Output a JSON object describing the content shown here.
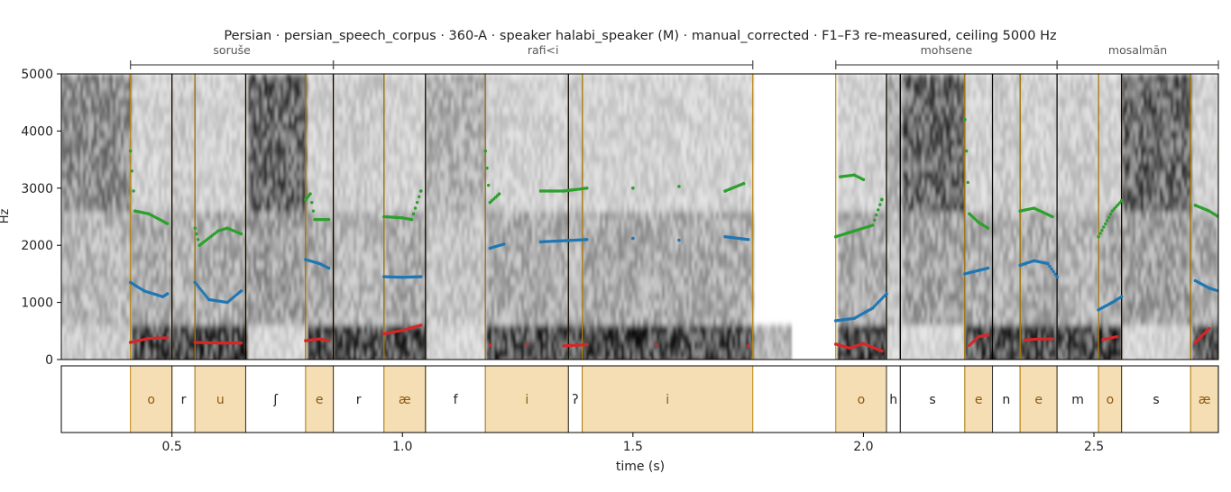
{
  "chart_data": {
    "type": "spectrogram",
    "title": "Persian · persian_speech_corpus · 360-A · speaker halabi_speaker (M) · manual_corrected · F1–F3 re-measured, ceiling 5000 Hz",
    "xlabel": "time (s)",
    "ylabel": "Hz",
    "xlim": [
      0.26,
      2.77
    ],
    "ylim": [
      0,
      5000
    ],
    "x_ticks": [
      0.5,
      1.0,
      1.5,
      2.0,
      2.5
    ],
    "x_tick_labels": [
      "0.5",
      "1.0",
      "1.5",
      "2.0",
      "2.5"
    ],
    "y_ticks": [
      0,
      1000,
      2000,
      3000,
      4000,
      5000
    ],
    "y_tick_labels": [
      "0",
      "1000",
      "2000",
      "3000",
      "4000",
      "5000"
    ],
    "words": [
      {
        "label": "soruše",
        "start": 0.41,
        "end": 0.85
      },
      {
        "label": "rafi<i",
        "start": 0.85,
        "end": 1.76
      },
      {
        "label": "mohsene",
        "start": 1.94,
        "end": 2.42
      },
      {
        "label": "mosalmān",
        "start": 2.42,
        "end": 2.77
      }
    ],
    "segments": [
      {
        "label": "o",
        "start": 0.41,
        "end": 0.5,
        "vowel": true
      },
      {
        "label": "r",
        "start": 0.5,
        "end": 0.55,
        "vowel": false
      },
      {
        "label": "u",
        "start": 0.55,
        "end": 0.66,
        "vowel": true
      },
      {
        "label": "ʃ",
        "start": 0.66,
        "end": 0.79,
        "vowel": false
      },
      {
        "label": "e",
        "start": 0.79,
        "end": 0.85,
        "vowel": true
      },
      {
        "label": "r",
        "start": 0.85,
        "end": 0.96,
        "vowel": false
      },
      {
        "label": "æ",
        "start": 0.96,
        "end": 1.05,
        "vowel": true
      },
      {
        "label": "f",
        "start": 1.05,
        "end": 1.18,
        "vowel": false
      },
      {
        "label": "i",
        "start": 1.18,
        "end": 1.36,
        "vowel": true
      },
      {
        "label": "ʔ",
        "start": 1.36,
        "end": 1.39,
        "vowel": false
      },
      {
        "label": "i",
        "start": 1.39,
        "end": 1.76,
        "vowel": true
      },
      {
        "label": "o",
        "start": 1.94,
        "end": 2.05,
        "vowel": true
      },
      {
        "label": "h",
        "start": 2.05,
        "end": 2.08,
        "vowel": false
      },
      {
        "label": "s",
        "start": 2.08,
        "end": 2.22,
        "vowel": false
      },
      {
        "label": "e",
        "start": 2.22,
        "end": 2.28,
        "vowel": true
      },
      {
        "label": "n",
        "start": 2.28,
        "end": 2.34,
        "vowel": false
      },
      {
        "label": "e",
        "start": 2.34,
        "end": 2.42,
        "vowel": true
      },
      {
        "label": "m",
        "start": 2.42,
        "end": 2.51,
        "vowel": false
      },
      {
        "label": "o",
        "start": 2.51,
        "end": 2.56,
        "vowel": true
      },
      {
        "label": "s",
        "start": 2.56,
        "end": 2.71,
        "vowel": false
      },
      {
        "label": "æ",
        "start": 2.71,
        "end": 2.77,
        "vowel": true
      }
    ],
    "formant_tracks": [
      {
        "name": "F1",
        "color": "#d62728",
        "points": [
          [
            0.41,
            300
          ],
          [
            0.45,
            370
          ],
          [
            0.49,
            380
          ],
          [
            0.55,
            300
          ],
          [
            0.6,
            290
          ],
          [
            0.65,
            290
          ],
          [
            0.79,
            330
          ],
          [
            0.82,
            360
          ],
          [
            0.84,
            330
          ],
          [
            0.96,
            450
          ],
          [
            1.0,
            510
          ],
          [
            1.04,
            600
          ],
          [
            1.19,
            250
          ],
          [
            1.27,
            260
          ],
          [
            1.35,
            240
          ],
          [
            1.4,
            260
          ],
          [
            1.55,
            260
          ],
          [
            1.75,
            240
          ],
          [
            1.94,
            270
          ],
          [
            1.97,
            200
          ],
          [
            2.0,
            280
          ],
          [
            2.04,
            150
          ],
          [
            2.23,
            250
          ],
          [
            2.25,
            400
          ],
          [
            2.27,
            430
          ],
          [
            2.35,
            340
          ],
          [
            2.38,
            360
          ],
          [
            2.41,
            360
          ],
          [
            2.52,
            350
          ],
          [
            2.55,
            400
          ],
          [
            2.72,
            300
          ],
          [
            2.75,
            540
          ]
        ]
      },
      {
        "name": "F2",
        "color": "#1f77b4",
        "points": [
          [
            0.41,
            1350
          ],
          [
            0.44,
            1200
          ],
          [
            0.48,
            1100
          ],
          [
            0.49,
            1150
          ],
          [
            0.55,
            1350
          ],
          [
            0.58,
            1050
          ],
          [
            0.62,
            1000
          ],
          [
            0.65,
            1200
          ],
          [
            0.79,
            1750
          ],
          [
            0.82,
            1680
          ],
          [
            0.84,
            1600
          ],
          [
            0.96,
            1450
          ],
          [
            1.0,
            1440
          ],
          [
            1.04,
            1450
          ],
          [
            1.19,
            1950
          ],
          [
            1.22,
            2020
          ],
          [
            1.3,
            2060
          ],
          [
            1.35,
            2080
          ],
          [
            1.4,
            2100
          ],
          [
            1.5,
            2120
          ],
          [
            1.6,
            2090
          ],
          [
            1.7,
            2150
          ],
          [
            1.75,
            2100
          ],
          [
            1.94,
            680
          ],
          [
            1.98,
            720
          ],
          [
            2.02,
            900
          ],
          [
            2.05,
            1150
          ],
          [
            2.22,
            1500
          ],
          [
            2.25,
            1560
          ],
          [
            2.27,
            1600
          ],
          [
            2.34,
            1650
          ],
          [
            2.37,
            1730
          ],
          [
            2.4,
            1680
          ],
          [
            2.42,
            1450
          ],
          [
            2.51,
            870
          ],
          [
            2.54,
            1000
          ],
          [
            2.56,
            1100
          ],
          [
            2.72,
            1380
          ],
          [
            2.75,
            1250
          ],
          [
            2.77,
            1200
          ]
        ]
      },
      {
        "name": "F3",
        "color": "#2ca02c",
        "points": [
          [
            0.41,
            3650
          ],
          [
            0.42,
            2600
          ],
          [
            0.45,
            2550
          ],
          [
            0.49,
            2380
          ],
          [
            0.55,
            2300
          ],
          [
            0.56,
            2000
          ],
          [
            0.6,
            2250
          ],
          [
            0.62,
            2300
          ],
          [
            0.65,
            2200
          ],
          [
            0.79,
            2800
          ],
          [
            0.8,
            2900
          ],
          [
            0.81,
            2450
          ],
          [
            0.84,
            2450
          ],
          [
            0.96,
            2500
          ],
          [
            1.0,
            2480
          ],
          [
            1.02,
            2450
          ],
          [
            1.04,
            2950
          ],
          [
            1.18,
            3650
          ],
          [
            1.19,
            2750
          ],
          [
            1.21,
            2900
          ],
          [
            1.3,
            2950
          ],
          [
            1.35,
            2950
          ],
          [
            1.4,
            3000
          ],
          [
            1.5,
            3000
          ],
          [
            1.6,
            3030
          ],
          [
            1.7,
            2950
          ],
          [
            1.74,
            3080
          ],
          [
            1.94,
            2150
          ],
          [
            1.98,
            2250
          ],
          [
            2.02,
            2350
          ],
          [
            2.04,
            2800
          ],
          [
            1.95,
            3200
          ],
          [
            1.98,
            3230
          ],
          [
            2.0,
            3150
          ],
          [
            2.22,
            4200
          ],
          [
            2.23,
            2550
          ],
          [
            2.25,
            2400
          ],
          [
            2.27,
            2300
          ],
          [
            2.34,
            2600
          ],
          [
            2.37,
            2650
          ],
          [
            2.41,
            2500
          ],
          [
            2.51,
            2150
          ],
          [
            2.54,
            2600
          ],
          [
            2.56,
            2780
          ],
          [
            2.72,
            2700
          ],
          [
            2.75,
            2600
          ],
          [
            2.77,
            2500
          ]
        ]
      }
    ],
    "colors": {
      "vowel_fill": "#f5deb3",
      "vowel_boundary": "#b8860b",
      "boundary": "#000000"
    }
  }
}
